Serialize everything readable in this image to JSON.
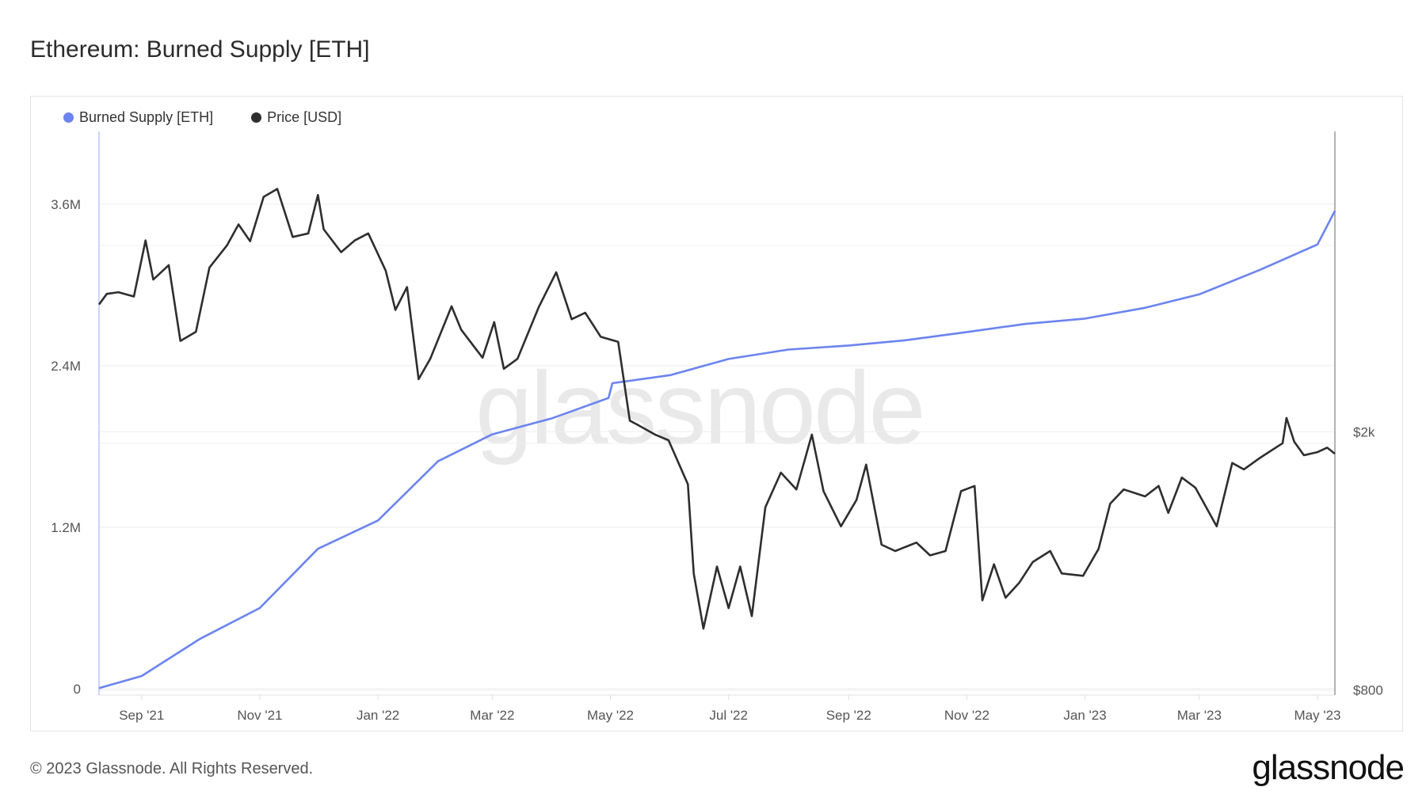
{
  "title": "Ethereum: Burned Supply [ETH]",
  "footer": {
    "copyright": "© 2023 Glassnode. All Rights Reserved.",
    "logo": "glassnode"
  },
  "watermark": "glassnode",
  "chart_data": {
    "type": "line",
    "title": "Ethereum: Burned Supply [ETH]",
    "legend_position": "top-left",
    "grid": true,
    "xlim": [
      "2021-08-10",
      "2023-05-10"
    ],
    "x_ticks": [
      {
        "date": "2021-09-01",
        "label": "Sep '21"
      },
      {
        "date": "2021-11-01",
        "label": "Nov '21"
      },
      {
        "date": "2022-01-01",
        "label": "Jan '22"
      },
      {
        "date": "2022-03-01",
        "label": "Mar '22"
      },
      {
        "date": "2022-05-01",
        "label": "May '22"
      },
      {
        "date": "2022-07-01",
        "label": "Jul '22"
      },
      {
        "date": "2022-09-01",
        "label": "Sep '22"
      },
      {
        "date": "2022-11-01",
        "label": "Nov '22"
      },
      {
        "date": "2023-01-01",
        "label": "Jan '23"
      },
      {
        "date": "2023-03-01",
        "label": "Mar '23"
      },
      {
        "date": "2023-05-01",
        "label": "May '23"
      }
    ],
    "y_left": {
      "scale": "linear",
      "ylim": [
        -47000,
        4140000
      ],
      "ticks": [
        {
          "value": 0,
          "label": "0"
        },
        {
          "value": 1200000,
          "label": "1.2M"
        },
        {
          "value": 2400000,
          "label": "2.4M"
        },
        {
          "value": 3600000,
          "label": "3.6M"
        }
      ]
    },
    "y_right": {
      "scale": "log",
      "ylim": [
        786,
        5800
      ],
      "ticks": [
        {
          "value": 800,
          "label": "$800"
        },
        {
          "value": 2000,
          "label": "$2k"
        }
      ]
    },
    "series": [
      {
        "name": "Burned Supply [ETH]",
        "axis": "left",
        "color": "#6b84f0",
        "x": [
          "2021-08-10",
          "2021-09-01",
          "2021-10-01",
          "2021-11-01",
          "2021-12-01",
          "2022-01-01",
          "2022-02-01",
          "2022-03-01",
          "2022-04-01",
          "2022-04-30",
          "2022-05-02",
          "2022-06-01",
          "2022-07-01",
          "2022-08-01",
          "2022-09-01",
          "2022-10-01",
          "2022-11-01",
          "2022-12-01",
          "2023-01-01",
          "2023-02-01",
          "2023-03-01",
          "2023-04-01",
          "2023-05-01",
          "2023-05-10"
        ],
        "values": [
          5000,
          95000,
          370000,
          600000,
          1040000,
          1250000,
          1690000,
          1890000,
          2010000,
          2160000,
          2270000,
          2330000,
          2450000,
          2520000,
          2550000,
          2590000,
          2650000,
          2710000,
          2750000,
          2830000,
          2930000,
          3110000,
          3300000,
          3550000
        ]
      },
      {
        "name": "Price [USD]",
        "axis": "right",
        "color": "#2e2e2e",
        "x": [
          "2021-08-10",
          "2021-08-14",
          "2021-08-20",
          "2021-08-28",
          "2021-09-03",
          "2021-09-07",
          "2021-09-15",
          "2021-09-21",
          "2021-09-29",
          "2021-10-06",
          "2021-10-15",
          "2021-10-21",
          "2021-10-27",
          "2021-11-03",
          "2021-11-10",
          "2021-11-18",
          "2021-11-26",
          "2021-12-01",
          "2021-12-04",
          "2021-12-13",
          "2021-12-20",
          "2021-12-27",
          "2022-01-05",
          "2022-01-10",
          "2022-01-16",
          "2022-01-22",
          "2022-01-28",
          "2022-02-08",
          "2022-02-13",
          "2022-02-24",
          "2022-03-02",
          "2022-03-07",
          "2022-03-14",
          "2022-03-25",
          "2022-04-03",
          "2022-04-11",
          "2022-04-18",
          "2022-04-26",
          "2022-05-05",
          "2022-05-11",
          "2022-05-15",
          "2022-05-24",
          "2022-05-31",
          "2022-06-10",
          "2022-06-13",
          "2022-06-18",
          "2022-06-25",
          "2022-07-01",
          "2022-07-07",
          "2022-07-13",
          "2022-07-20",
          "2022-07-28",
          "2022-08-05",
          "2022-08-13",
          "2022-08-19",
          "2022-08-28",
          "2022-09-05",
          "2022-09-10",
          "2022-09-18",
          "2022-09-25",
          "2022-10-06",
          "2022-10-13",
          "2022-10-21",
          "2022-10-29",
          "2022-11-05",
          "2022-11-09",
          "2022-11-15",
          "2022-11-21",
          "2022-11-28",
          "2022-12-05",
          "2022-12-14",
          "2022-12-20",
          "2022-12-31",
          "2023-01-08",
          "2023-01-14",
          "2023-01-21",
          "2023-02-01",
          "2023-02-08",
          "2023-02-13",
          "2023-02-20",
          "2023-02-27",
          "2023-03-10",
          "2023-03-18",
          "2023-03-24",
          "2023-04-01",
          "2023-04-13",
          "2023-04-15",
          "2023-04-19",
          "2023-04-24",
          "2023-05-01",
          "2023-05-06",
          "2023-05-10"
        ],
        "values": [
          3140,
          3260,
          3280,
          3230,
          3940,
          3430,
          3610,
          2760,
          2850,
          3580,
          3870,
          4170,
          3930,
          4600,
          4730,
          3990,
          4040,
          4630,
          4100,
          3780,
          3940,
          4040,
          3540,
          3080,
          3340,
          2410,
          2590,
          3120,
          2870,
          2600,
          2950,
          2500,
          2590,
          3110,
          3520,
          2980,
          3050,
          2800,
          2750,
          2080,
          2050,
          1980,
          1940,
          1660,
          1210,
          995,
          1240,
          1070,
          1240,
          1040,
          1530,
          1730,
          1630,
          1980,
          1620,
          1430,
          1570,
          1780,
          1340,
          1310,
          1350,
          1290,
          1310,
          1620,
          1650,
          1100,
          1250,
          1110,
          1170,
          1260,
          1310,
          1210,
          1200,
          1320,
          1550,
          1630,
          1590,
          1650,
          1500,
          1700,
          1640,
          1430,
          1790,
          1750,
          1820,
          1920,
          2100,
          1930,
          1840,
          1860,
          1890,
          1850
        ]
      }
    ]
  }
}
